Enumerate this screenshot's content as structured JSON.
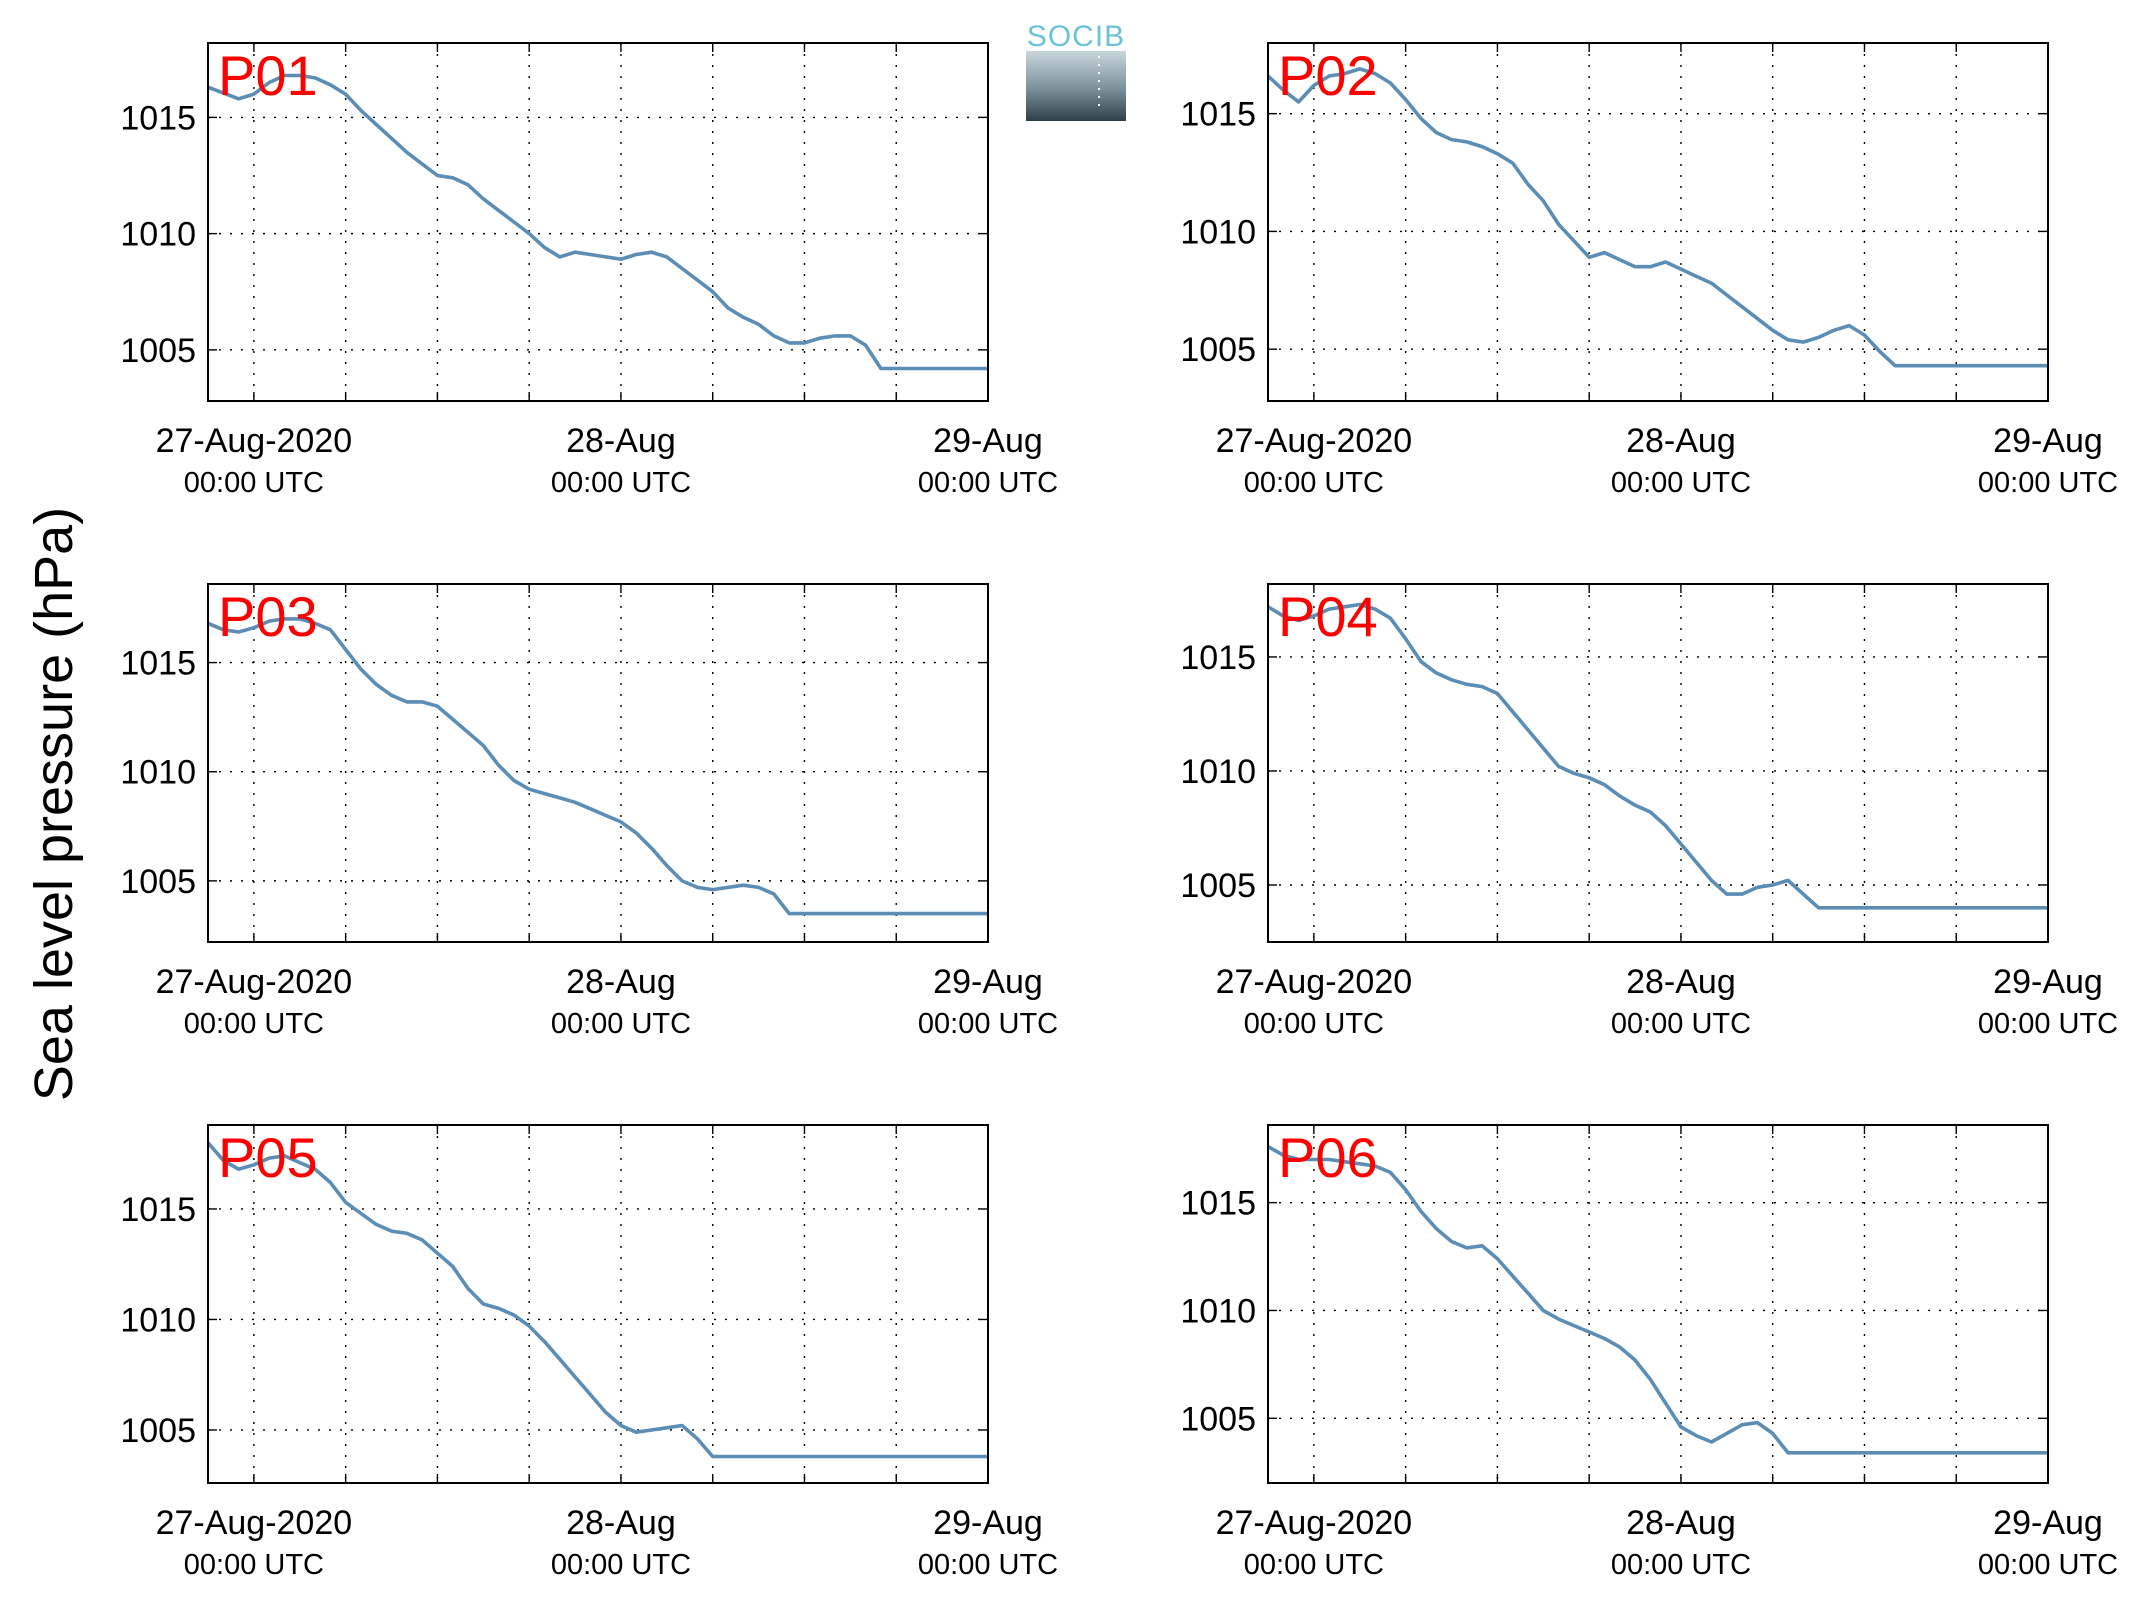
{
  "figure": {
    "ylabel": "Sea level pressure (hPa)",
    "logo_text": "SOCIB",
    "colors": {
      "line": "#5b8db5",
      "panel_label": "#ff0000",
      "logo_text": "#6cc3d5"
    }
  },
  "chart_data": [
    {
      "type": "line",
      "name": "P01",
      "xlabels": [
        {
          "date": "27-Aug-2020",
          "time": "00:00 UTC"
        },
        {
          "date": "28-Aug",
          "time": "00:00 UTC"
        },
        {
          "date": "29-Aug",
          "time": "00:00 UTC"
        }
      ],
      "xlim_hours": [
        -3,
        48
      ],
      "ylim": [
        1002.8,
        1018.2
      ],
      "yticks": [
        1005,
        1010,
        1015
      ],
      "grid": true,
      "x": [
        -3,
        -1,
        0,
        1,
        2,
        3,
        4,
        5,
        6,
        7,
        8,
        9,
        10,
        11,
        12,
        13,
        14,
        15,
        16,
        17,
        18,
        19,
        20,
        21,
        22,
        23,
        24,
        25,
        26,
        27,
        28,
        29,
        30,
        31,
        32,
        33,
        34,
        35,
        36,
        37,
        38,
        39,
        40,
        41,
        42,
        43,
        44,
        45,
        46,
        47,
        48
      ],
      "y": [
        1016.3,
        1015.8,
        1016.0,
        1016.5,
        1016.8,
        1016.8,
        1016.7,
        1016.4,
        1016.0,
        1015.3,
        1014.7,
        1014.1,
        1013.5,
        1013.0,
        1012.5,
        1012.4,
        1012.1,
        1011.5,
        1011.0,
        1010.5,
        1010.0,
        1009.4,
        1009.0,
        1009.2,
        1009.1,
        1009.0,
        1008.9,
        1009.1,
        1009.2,
        1009.0,
        1008.5,
        1008.0,
        1007.5,
        1006.8,
        1006.4,
        1006.1,
        1005.6,
        1005.3,
        1005.3,
        1005.5,
        1005.6,
        1005.6,
        1005.2,
        1004.2,
        1004.2,
        1004.2,
        1004.2,
        1004.2,
        1004.2,
        1004.2,
        1004.2
      ]
    },
    {
      "type": "line",
      "name": "P02",
      "xlabels": [
        {
          "date": "27-Aug-2020",
          "time": "00:00 UTC"
        },
        {
          "date": "28-Aug",
          "time": "00:00 UTC"
        },
        {
          "date": "29-Aug",
          "time": "00:00 UTC"
        }
      ],
      "xlim_hours": [
        -3,
        48
      ],
      "ylim": [
        1002.8,
        1018.0
      ],
      "yticks": [
        1005,
        1010,
        1015
      ],
      "grid": true,
      "x": [
        -3,
        -2,
        -1,
        0,
        1,
        2,
        3,
        4,
        5,
        6,
        7,
        8,
        9,
        10,
        11,
        12,
        13,
        14,
        15,
        16,
        17,
        18,
        19,
        20,
        21,
        22,
        23,
        24,
        25,
        26,
        27,
        28,
        29,
        30,
        31,
        32,
        33,
        34,
        35,
        36,
        37,
        38,
        39,
        40,
        41,
        42,
        43,
        44,
        45,
        46,
        47,
        48
      ],
      "y": [
        1016.6,
        1016.0,
        1015.5,
        1016.2,
        1016.6,
        1016.7,
        1016.9,
        1016.7,
        1016.3,
        1015.6,
        1014.8,
        1014.2,
        1013.9,
        1013.8,
        1013.6,
        1013.3,
        1012.9,
        1012.0,
        1011.3,
        1010.3,
        1009.6,
        1008.9,
        1009.1,
        1008.8,
        1008.5,
        1008.5,
        1008.7,
        1008.4,
        1008.1,
        1007.8,
        1007.3,
        1006.8,
        1006.3,
        1005.8,
        1005.4,
        1005.3,
        1005.5,
        1005.8,
        1006.0,
        1005.6,
        1004.9,
        1004.3,
        1004.3,
        1004.3,
        1004.3,
        1004.3,
        1004.3,
        1004.3,
        1004.3,
        1004.3,
        1004.3,
        1004.3
      ]
    },
    {
      "type": "line",
      "name": "P03",
      "xlabels": [
        {
          "date": "27-Aug-2020",
          "time": "00:00 UTC"
        },
        {
          "date": "28-Aug",
          "time": "00:00 UTC"
        },
        {
          "date": "29-Aug",
          "time": "00:00 UTC"
        }
      ],
      "xlim_hours": [
        -3,
        48
      ],
      "ylim": [
        1002.2,
        1018.6
      ],
      "yticks": [
        1005,
        1010,
        1015
      ],
      "grid": true,
      "x": [
        -3,
        -2,
        -1,
        0,
        1,
        2,
        3,
        4,
        5,
        6,
        7,
        8,
        9,
        10,
        11,
        12,
        13,
        14,
        15,
        16,
        17,
        18,
        19,
        20,
        21,
        22,
        23,
        24,
        25,
        26,
        27,
        28,
        29,
        30,
        31,
        32,
        33,
        34,
        35,
        36,
        37,
        38,
        39,
        40,
        41,
        42,
        43,
        44,
        45,
        46,
        47,
        48
      ],
      "y": [
        1016.8,
        1016.5,
        1016.4,
        1016.6,
        1016.9,
        1017.0,
        1017.0,
        1016.8,
        1016.5,
        1015.6,
        1014.7,
        1014.0,
        1013.5,
        1013.2,
        1013.2,
        1013.0,
        1012.4,
        1011.8,
        1011.2,
        1010.3,
        1009.6,
        1009.2,
        1009.0,
        1008.8,
        1008.6,
        1008.3,
        1008.0,
        1007.7,
        1007.2,
        1006.5,
        1005.7,
        1005.0,
        1004.7,
        1004.6,
        1004.7,
        1004.8,
        1004.7,
        1004.4,
        1003.5,
        1003.5,
        1003.5,
        1003.5,
        1003.5,
        1003.5,
        1003.5,
        1003.5,
        1003.5,
        1003.5,
        1003.5,
        1003.5,
        1003.5,
        1003.5
      ]
    },
    {
      "type": "line",
      "name": "P04",
      "xlabels": [
        {
          "date": "27-Aug-2020",
          "time": "00:00 UTC"
        },
        {
          "date": "28-Aug",
          "time": "00:00 UTC"
        },
        {
          "date": "29-Aug",
          "time": "00:00 UTC"
        }
      ],
      "xlim_hours": [
        -3,
        48
      ],
      "ylim": [
        1002.5,
        1018.2
      ],
      "yticks": [
        1005,
        1010,
        1015
      ],
      "grid": true,
      "x": [
        -3,
        -2,
        -1,
        0,
        1,
        2,
        3,
        4,
        5,
        6,
        7,
        8,
        9,
        10,
        11,
        12,
        13,
        14,
        15,
        16,
        17,
        18,
        19,
        20,
        21,
        22,
        23,
        24,
        25,
        26,
        27,
        28,
        29,
        30,
        31,
        32,
        33,
        34,
        35,
        36,
        37,
        38,
        39,
        40,
        41,
        42,
        43,
        44,
        45,
        46,
        47,
        48
      ],
      "y": [
        1017.2,
        1016.8,
        1016.6,
        1016.8,
        1017.1,
        1017.2,
        1017.3,
        1017.1,
        1016.7,
        1015.8,
        1014.8,
        1014.3,
        1014.0,
        1013.8,
        1013.7,
        1013.4,
        1012.6,
        1011.8,
        1011.0,
        1010.2,
        1009.9,
        1009.7,
        1009.4,
        1008.9,
        1008.5,
        1008.2,
        1007.6,
        1006.8,
        1006.0,
        1005.2,
        1004.6,
        1004.6,
        1004.9,
        1005.0,
        1005.2,
        1004.6,
        1004.0,
        1004.0,
        1004.0,
        1004.0,
        1004.0,
        1004.0,
        1004.0,
        1004.0,
        1004.0,
        1004.0,
        1004.0,
        1004.0,
        1004.0,
        1004.0,
        1004.0,
        1004.0
      ]
    },
    {
      "type": "line",
      "name": "P05",
      "xlabels": [
        {
          "date": "27-Aug-2020",
          "time": "00:00 UTC"
        },
        {
          "date": "28-Aug",
          "time": "00:00 UTC"
        },
        {
          "date": "29-Aug",
          "time": "00:00 UTC"
        }
      ],
      "xlim_hours": [
        -3,
        48
      ],
      "ylim": [
        1002.6,
        1018.8
      ],
      "yticks": [
        1005,
        1010,
        1015
      ],
      "grid": true,
      "x": [
        -3,
        -2,
        -1,
        0,
        1,
        2,
        3,
        4,
        5,
        6,
        7,
        8,
        9,
        10,
        11,
        12,
        13,
        14,
        15,
        16,
        17,
        18,
        19,
        20,
        21,
        22,
        23,
        24,
        25,
        26,
        27,
        28,
        29,
        30,
        31,
        32,
        33,
        34,
        35,
        36,
        37,
        38,
        39,
        40,
        41,
        42,
        43,
        44,
        45,
        46,
        47,
        48
      ],
      "y": [
        1018.0,
        1017.2,
        1016.8,
        1017.0,
        1017.3,
        1017.4,
        1017.1,
        1016.8,
        1016.2,
        1015.3,
        1014.8,
        1014.3,
        1014.0,
        1013.9,
        1013.6,
        1013.0,
        1012.4,
        1011.4,
        1010.7,
        1010.5,
        1010.2,
        1009.7,
        1009.0,
        1008.2,
        1007.4,
        1006.6,
        1005.8,
        1005.2,
        1004.9,
        1005.0,
        1005.1,
        1005.2,
        1004.6,
        1003.8,
        1003.8,
        1003.8,
        1003.8,
        1003.8,
        1003.8,
        1003.8,
        1003.8,
        1003.8,
        1003.8,
        1003.8,
        1003.8,
        1003.8,
        1003.8,
        1003.8,
        1003.8,
        1003.8,
        1003.8,
        1003.8
      ]
    },
    {
      "type": "line",
      "name": "P06",
      "xlabels": [
        {
          "date": "27-Aug-2020",
          "time": "00:00 UTC"
        },
        {
          "date": "28-Aug",
          "time": "00:00 UTC"
        },
        {
          "date": "29-Aug",
          "time": "00:00 UTC"
        }
      ],
      "xlim_hours": [
        -3,
        48
      ],
      "ylim": [
        1002.0,
        1018.6
      ],
      "yticks": [
        1005,
        1010,
        1015
      ],
      "grid": true,
      "x": [
        -3,
        -2,
        -1,
        0,
        1,
        2,
        3,
        4,
        5,
        6,
        7,
        8,
        9,
        10,
        11,
        12,
        13,
        14,
        15,
        16,
        17,
        18,
        19,
        20,
        21,
        22,
        23,
        24,
        25,
        26,
        27,
        28,
        29,
        30,
        31,
        32,
        33,
        34,
        35,
        36,
        37,
        38,
        39,
        40,
        41,
        42,
        43,
        44,
        45,
        46,
        47,
        48
      ],
      "y": [
        1017.6,
        1017.2,
        1017.0,
        1017.0,
        1017.0,
        1016.9,
        1016.8,
        1016.7,
        1016.4,
        1015.6,
        1014.6,
        1013.8,
        1013.2,
        1012.9,
        1013.0,
        1012.4,
        1011.6,
        1010.8,
        1010.0,
        1009.6,
        1009.3,
        1009.0,
        1008.7,
        1008.3,
        1007.7,
        1006.8,
        1005.7,
        1004.6,
        1004.2,
        1003.9,
        1004.3,
        1004.7,
        1004.8,
        1004.3,
        1003.4,
        1003.4,
        1003.4,
        1003.4,
        1003.4,
        1003.4,
        1003.4,
        1003.4,
        1003.4,
        1003.4,
        1003.4,
        1003.4,
        1003.4,
        1003.4,
        1003.4,
        1003.4,
        1003.4,
        1003.4
      ]
    }
  ]
}
